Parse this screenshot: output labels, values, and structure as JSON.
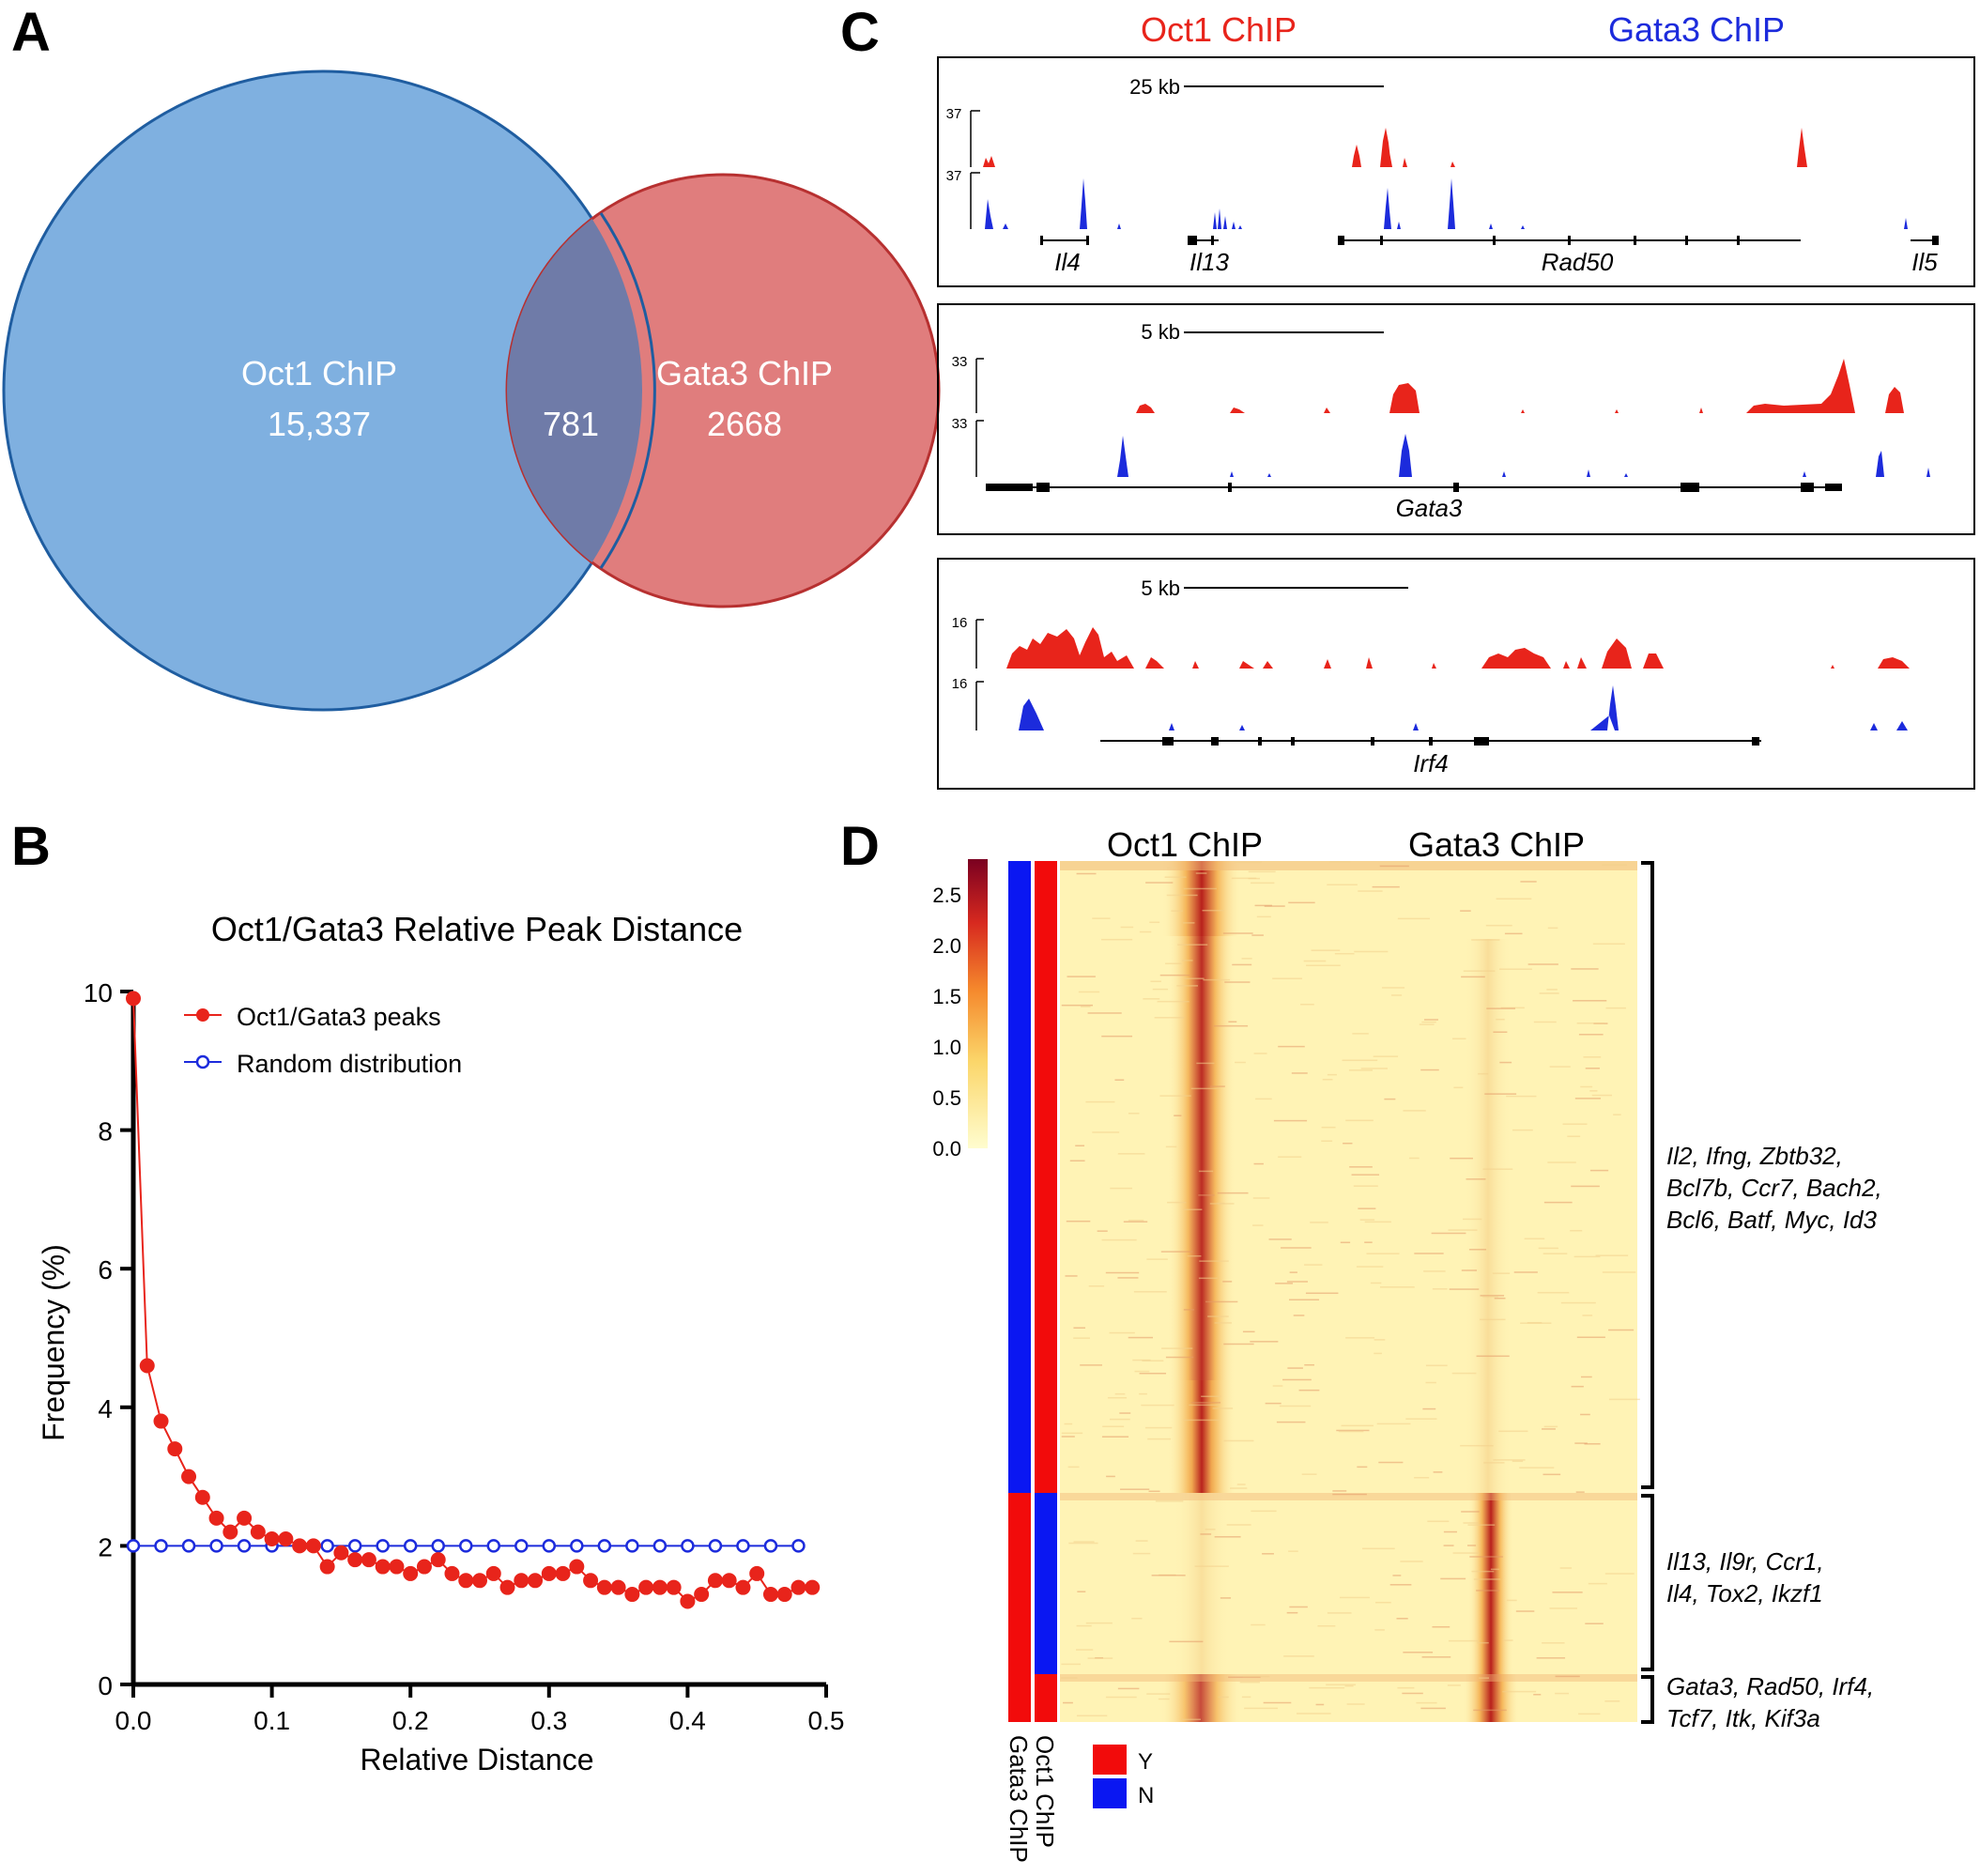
{
  "panel_letters": {
    "a": "A",
    "b": "B",
    "c": "C",
    "d": "D"
  },
  "colors": {
    "blue": "#7fb0e0",
    "red": "#e07d7d",
    "overlap": "#6f7ba8",
    "peak_red": "#e8241b",
    "peak_blue": "#1c2bdc",
    "bar_red": "#f20b0b",
    "bar_blue": "#0a17f2"
  },
  "venn": {
    "left_label": "Oct1 ChIP",
    "left_count": "15,337",
    "overlap_count": "781",
    "right_label": "Gata3 ChIP",
    "right_count": "2668"
  },
  "panel_c": {
    "header_left": "Oct1 ChIP",
    "header_right": "Gata3 ChIP",
    "tracks": [
      {
        "scale": "25 kb",
        "max_top": "37",
        "max_bottom": "37",
        "genes": [
          "Il4",
          "Il13",
          "Rad50",
          "Il5"
        ]
      },
      {
        "scale": "5 kb",
        "max_top": "33",
        "max_bottom": "33",
        "genes": [
          "Gata3"
        ]
      },
      {
        "scale": "5 kb",
        "max_top": "16",
        "max_bottom": "16",
        "genes": [
          "Irf4"
        ]
      }
    ]
  },
  "panel_d": {
    "header_left": "Oct1 ChIP",
    "header_right": "Gata3 ChIP",
    "colorbar_ticks": [
      "2.5",
      "2.0",
      "1.5",
      "1.0",
      "0.5",
      "0.0"
    ],
    "bar_label_left": "Gata3 ChIP",
    "bar_label_right": "Oct1 ChIP",
    "legend": [
      {
        "label": "Y"
      },
      {
        "label": "N"
      }
    ],
    "clusters": [
      {
        "lines": [
          "Il2, Ifng, Zbtb32,",
          "Bcl7b, Ccr7, Bach2,",
          "Bcl6, Batf, Myc, Id3"
        ]
      },
      {
        "lines": [
          "Il13, Il9r, Ccr1,",
          "Il4, Tox2, Ikzf1"
        ]
      },
      {
        "lines": [
          "Gata3, Rad50, Irf4,",
          "Tcf7, Itk, Kif3a"
        ]
      }
    ]
  },
  "chart_data": {
    "type": "line",
    "title": "Oct1/Gata3 Relative Peak Distance",
    "xlabel": "Relative Distance",
    "ylabel": "Frequency (%)",
    "xlim": [
      0,
      0.5
    ],
    "ylim": [
      0,
      10
    ],
    "xticks": [
      "0.0",
      "0.1",
      "0.2",
      "0.3",
      "0.4",
      "0.5"
    ],
    "yticks": [
      "0",
      "2",
      "4",
      "6",
      "8",
      "10"
    ],
    "series": [
      {
        "name": "Oct1/Gata3 peaks",
        "x": [
          0,
          0.01,
          0.02,
          0.03,
          0.04,
          0.05,
          0.06,
          0.07,
          0.08,
          0.09,
          0.1,
          0.11,
          0.12,
          0.13,
          0.14,
          0.15,
          0.16,
          0.17,
          0.18,
          0.19,
          0.2,
          0.21,
          0.22,
          0.23,
          0.24,
          0.25,
          0.26,
          0.27,
          0.28,
          0.29,
          0.3,
          0.31,
          0.32,
          0.33,
          0.34,
          0.35,
          0.36,
          0.37,
          0.38,
          0.39,
          0.4,
          0.41,
          0.42,
          0.43,
          0.44,
          0.45,
          0.46,
          0.47,
          0.48,
          0.49
        ],
        "y": [
          9.9,
          4.6,
          3.8,
          3.4,
          3.0,
          2.7,
          2.4,
          2.2,
          2.4,
          2.2,
          2.1,
          2.1,
          2.0,
          2.0,
          1.7,
          1.9,
          1.8,
          1.8,
          1.7,
          1.7,
          1.6,
          1.7,
          1.8,
          1.6,
          1.5,
          1.5,
          1.6,
          1.4,
          1.5,
          1.5,
          1.6,
          1.6,
          1.7,
          1.5,
          1.4,
          1.4,
          1.3,
          1.4,
          1.4,
          1.4,
          1.2,
          1.3,
          1.5,
          1.5,
          1.4,
          1.6,
          1.3,
          1.3,
          1.4,
          1.4
        ]
      },
      {
        "name": "Random distribution",
        "x": [
          0,
          0.02,
          0.04,
          0.06,
          0.08,
          0.1,
          0.12,
          0.14,
          0.16,
          0.18,
          0.2,
          0.22,
          0.24,
          0.26,
          0.28,
          0.3,
          0.32,
          0.34,
          0.36,
          0.38,
          0.4,
          0.42,
          0.44,
          0.46,
          0.48
        ],
        "y": [
          2,
          2,
          2,
          2,
          2,
          2,
          2,
          2,
          2,
          2,
          2,
          2,
          2,
          2,
          2,
          2,
          2,
          2,
          2,
          2,
          2,
          2,
          2,
          2,
          2
        ]
      }
    ],
    "legend": "top-right"
  }
}
